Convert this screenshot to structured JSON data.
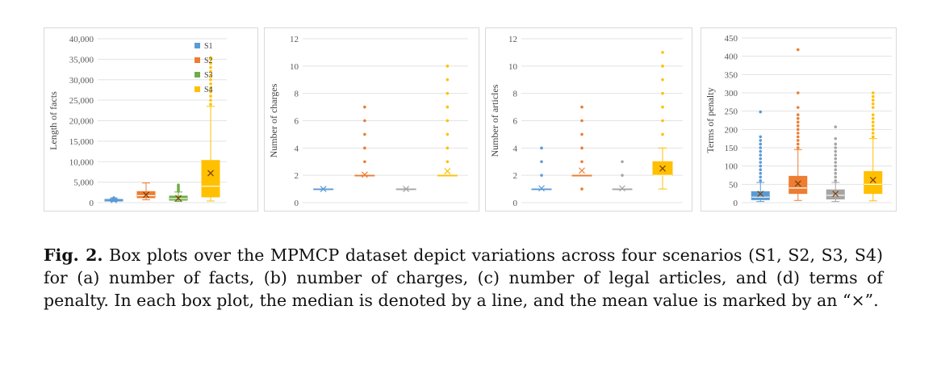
{
  "chart_data": [
    {
      "type": "box",
      "ylabel": "Length of facts",
      "ylim": [
        0,
        40000
      ],
      "yticks": [
        0,
        5000,
        10000,
        15000,
        20000,
        25000,
        30000,
        35000,
        40000
      ],
      "ytick_labels": [
        "0",
        "5,000",
        "10,000",
        "15,000",
        "20,000",
        "25,000",
        "30,000",
        "35,000",
        "40,000"
      ],
      "legend": [
        "S1",
        "S2",
        "S3",
        "S4"
      ],
      "legend_position": "top-right",
      "series": [
        {
          "name": "S1",
          "color": "#5b9bd5",
          "whisker_low": 300,
          "q1": 400,
          "median": 500,
          "q3": 800,
          "whisker_high": 1000,
          "mean": 600,
          "outliers": [
            1100,
            1200
          ]
        },
        {
          "name": "S2",
          "color": "#ed7d31",
          "whisker_low": 700,
          "q1": 1200,
          "median": 1700,
          "q3": 2700,
          "whisker_high": 4800,
          "mean": 1900,
          "outliers": []
        },
        {
          "name": "S3",
          "color": "#70ad47",
          "whisker_low": 300,
          "q1": 600,
          "median": 1000,
          "q3": 1600,
          "whisker_high": 2600,
          "mean": 1100,
          "outliers": [
            2800,
            3100,
            3400,
            3700,
            4000,
            4300
          ]
        },
        {
          "name": "S4",
          "color": "#ffc000",
          "whisker_low": 400,
          "q1": 1400,
          "median": 4000,
          "q3": 10300,
          "whisker_high": 23500,
          "mean": 7200,
          "outliers": [
            24000,
            25000,
            26000,
            27000,
            28000,
            29000,
            30000,
            31000,
            32000,
            33000,
            34000,
            35000,
            35400
          ]
        }
      ]
    },
    {
      "type": "box",
      "ylabel": "Number of charges",
      "ylim": [
        0,
        12
      ],
      "yticks": [
        0,
        2,
        4,
        6,
        8,
        10,
        12
      ],
      "ytick_labels": [
        "0",
        "2",
        "4",
        "6",
        "8",
        "10",
        "12"
      ],
      "series": [
        {
          "name": "S1",
          "color": "#5b9bd5",
          "whisker_low": 1,
          "q1": 1,
          "median": 1,
          "q3": 1,
          "whisker_high": 1,
          "mean": 1,
          "outliers": []
        },
        {
          "name": "S2",
          "color": "#ed7d31",
          "whisker_low": 2,
          "q1": 2,
          "median": 2,
          "q3": 2,
          "whisker_high": 2,
          "mean": 2.05,
          "outliers": [
            3,
            4,
            5,
            6,
            7
          ]
        },
        {
          "name": "S3",
          "color": "#a5a5a5",
          "whisker_low": 1,
          "q1": 1,
          "median": 1,
          "q3": 1,
          "whisker_high": 1,
          "mean": 1,
          "outliers": []
        },
        {
          "name": "S4",
          "color": "#ffc000",
          "whisker_low": 2,
          "q1": 2,
          "median": 2,
          "q3": 2,
          "whisker_high": 2,
          "mean": 2.3,
          "outliers": [
            3,
            4,
            5,
            6,
            7,
            8,
            9,
            10
          ]
        }
      ]
    },
    {
      "type": "box",
      "ylabel": "Number of articles",
      "ylim": [
        0,
        12
      ],
      "yticks": [
        0,
        2,
        4,
        6,
        8,
        10,
        12
      ],
      "ytick_labels": [
        "0",
        "2",
        "4",
        "6",
        "8",
        "10",
        "12"
      ],
      "series": [
        {
          "name": "S1",
          "color": "#5b9bd5",
          "whisker_low": 1,
          "q1": 1,
          "median": 1,
          "q3": 1,
          "whisker_high": 1,
          "mean": 1.05,
          "outliers": [
            2,
            3,
            4
          ]
        },
        {
          "name": "S2",
          "color": "#ed7d31",
          "whisker_low": 2,
          "q1": 2,
          "median": 2,
          "q3": 2,
          "whisker_high": 2,
          "mean": 2.35,
          "outliers": [
            1,
            3,
            4,
            5,
            6,
            7
          ]
        },
        {
          "name": "S3",
          "color": "#a5a5a5",
          "whisker_low": 1,
          "q1": 1,
          "median": 1,
          "q3": 1,
          "whisker_high": 1,
          "mean": 1.05,
          "outliers": [
            2,
            3
          ]
        },
        {
          "name": "S4",
          "color": "#ffc000",
          "whisker_low": 1,
          "q1": 2,
          "median": 2,
          "q3": 3,
          "whisker_high": 4,
          "mean": 2.5,
          "outliers": [
            5,
            6,
            7,
            8,
            9,
            10,
            11
          ]
        }
      ]
    },
    {
      "type": "box",
      "ylabel": "Terms of penalty",
      "ylim": [
        0,
        450
      ],
      "yticks": [
        0,
        50,
        100,
        150,
        200,
        250,
        300,
        350,
        400,
        450
      ],
      "ytick_labels": [
        "0",
        "50",
        "100",
        "150",
        "200",
        "250",
        "300",
        "350",
        "400",
        "450"
      ],
      "series": [
        {
          "name": "S1",
          "color": "#5b9bd5",
          "whisker_low": 3,
          "q1": 8,
          "median": 15,
          "q3": 30,
          "whisker_high": 55,
          "mean": 24,
          "outliers": [
            60,
            70,
            80,
            90,
            100,
            110,
            120,
            130,
            140,
            150,
            160,
            170,
            180,
            248
          ]
        },
        {
          "name": "S2",
          "color": "#ed7d31",
          "whisker_low": 6,
          "q1": 25,
          "median": 40,
          "q3": 72,
          "whisker_high": 145,
          "mean": 52,
          "outliers": [
            150,
            160,
            170,
            180,
            190,
            200,
            210,
            220,
            230,
            240,
            260,
            300,
            418
          ]
        },
        {
          "name": "S3",
          "color": "#a5a5a5",
          "whisker_low": 3,
          "q1": 10,
          "median": 20,
          "q3": 35,
          "whisker_high": 55,
          "mean": 24,
          "outliers": [
            60,
            70,
            80,
            90,
            100,
            110,
            120,
            130,
            140,
            150,
            160,
            175,
            207
          ]
        },
        {
          "name": "S4",
          "color": "#ffc000",
          "whisker_low": 5,
          "q1": 25,
          "median": 50,
          "q3": 85,
          "whisker_high": 175,
          "mean": 62,
          "outliers": [
            180,
            190,
            200,
            210,
            220,
            230,
            240,
            260,
            270,
            280,
            290,
            300
          ]
        }
      ]
    }
  ],
  "caption": {
    "label": "Fig. 2.",
    "text": " Box plots over the MPMCP dataset depict variations across four scenarios (S1, S2, S3, S4) for (a) number of facts, (b) number of charges, (c) number of legal articles, and (d) terms of penalty. In each box plot, the median is denoted by a line, and the mean value is marked by an “×”."
  }
}
